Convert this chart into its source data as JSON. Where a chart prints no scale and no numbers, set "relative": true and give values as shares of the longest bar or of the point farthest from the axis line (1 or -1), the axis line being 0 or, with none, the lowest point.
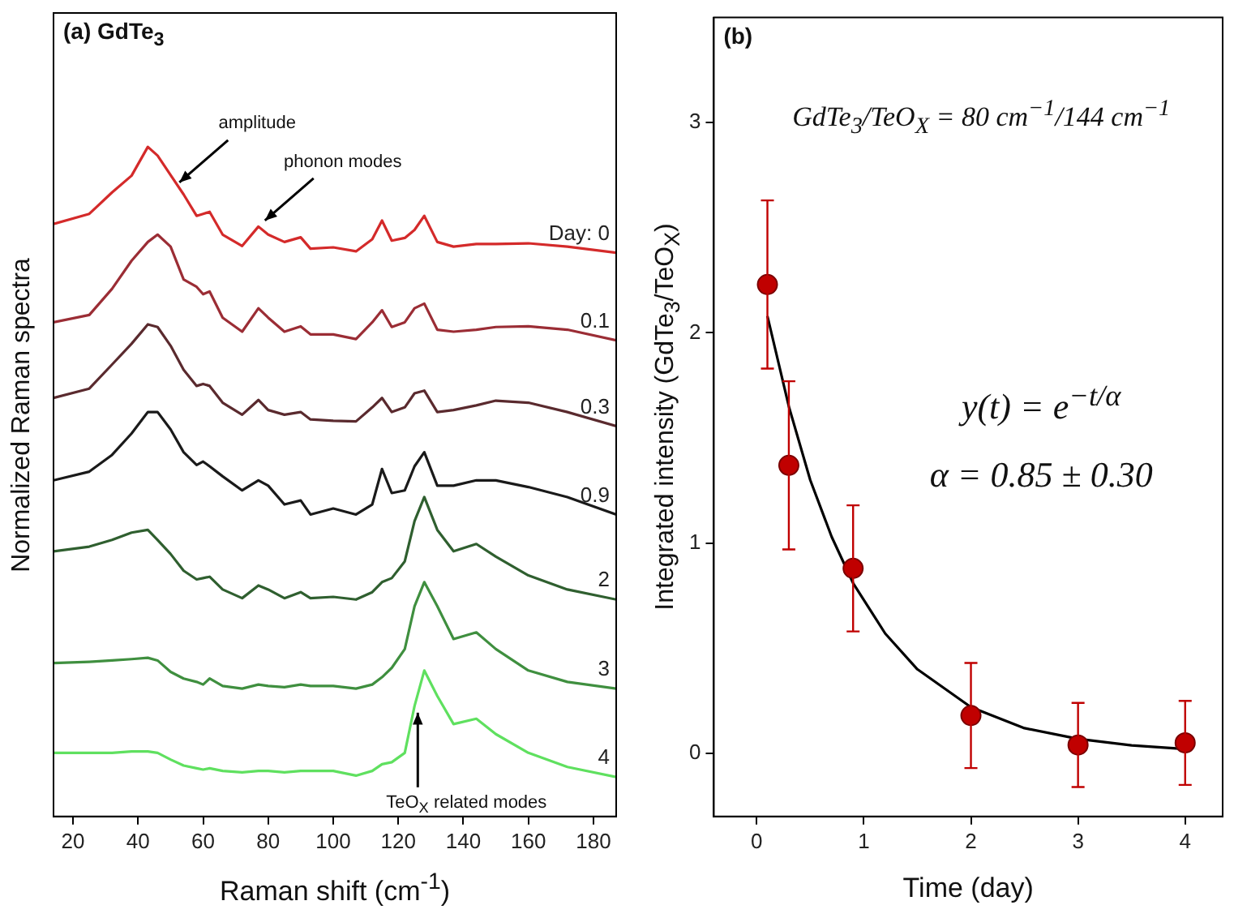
{
  "chart_data": [
    {
      "type": "line",
      "title": "(a) GdTe$_{3}$",
      "xlabel": "Raman shift (cm$^{-1}$)",
      "ylabel": "Normalized Raman spectra",
      "relative": true,
      "xlim": [
        14,
        187
      ],
      "xticks": [
        20,
        40,
        60,
        80,
        100,
        120,
        140,
        160,
        180
      ],
      "grid": false,
      "legend": false,
      "x": [
        14,
        25,
        32,
        38,
        43,
        46,
        50,
        54,
        58,
        60,
        62,
        66,
        72,
        77,
        80,
        85,
        90,
        93,
        100,
        107,
        112,
        115,
        118,
        122,
        125,
        128,
        132,
        137,
        144,
        150,
        160,
        172,
        187
      ],
      "series": [
        {
          "name": "Day: 0",
          "color": "#d42a2a",
          "values": [
            0.885,
            0.9,
            0.932,
            0.957,
            1,
            0.987,
            0.958,
            0.929,
            0.897,
            0.9,
            0.903,
            0.869,
            0.852,
            0.881,
            0.869,
            0.858,
            0.865,
            0.848,
            0.85,
            0.844,
            0.862,
            0.89,
            0.86,
            0.864,
            0.876,
            0.897,
            0.858,
            0.851,
            0.855,
            0.855,
            0.856,
            0.851,
            0.842
          ]
        },
        {
          "name": "0.1",
          "color": "#9b2d35",
          "values": [
            0.738,
            0.749,
            0.788,
            0.83,
            0.858,
            0.869,
            0.851,
            0.802,
            0.791,
            0.78,
            0.784,
            0.745,
            0.724,
            0.759,
            0.745,
            0.724,
            0.732,
            0.72,
            0.72,
            0.713,
            0.738,
            0.756,
            0.731,
            0.738,
            0.759,
            0.766,
            0.727,
            0.724,
            0.727,
            0.731,
            0.732,
            0.727,
            0.711
          ]
        },
        {
          "name": "0.3",
          "color": "#5a2a2e",
          "values": [
            0.625,
            0.639,
            0.675,
            0.706,
            0.735,
            0.731,
            0.703,
            0.667,
            0.643,
            0.646,
            0.643,
            0.618,
            0.6,
            0.622,
            0.607,
            0.6,
            0.604,
            0.593,
            0.591,
            0.59,
            0.611,
            0.625,
            0.604,
            0.611,
            0.632,
            0.636,
            0.604,
            0.607,
            0.614,
            0.621,
            0.618,
            0.604,
            0.583
          ]
        },
        {
          "name": "0.9",
          "color": "#1a1a1a",
          "values": [
            0.502,
            0.515,
            0.54,
            0.572,
            0.604,
            0.604,
            0.578,
            0.544,
            0.525,
            0.53,
            0.523,
            0.508,
            0.487,
            0.502,
            0.494,
            0.466,
            0.472,
            0.451,
            0.46,
            0.451,
            0.466,
            0.519,
            0.483,
            0.487,
            0.523,
            0.544,
            0.494,
            0.494,
            0.502,
            0.502,
            0.492,
            0.477,
            0.451
          ]
        },
        {
          "name": "2",
          "color": "#2f5f2f",
          "values": [
            0.396,
            0.403,
            0.413,
            0.424,
            0.428,
            0.413,
            0.392,
            0.367,
            0.354,
            0.356,
            0.358,
            0.339,
            0.326,
            0.345,
            0.339,
            0.326,
            0.335,
            0.326,
            0.328,
            0.324,
            0.335,
            0.35,
            0.356,
            0.381,
            0.441,
            0.477,
            0.428,
            0.396,
            0.407,
            0.388,
            0.36,
            0.339,
            0.324
          ]
        },
        {
          "name": "3",
          "color": "#3f8f3f",
          "values": [
            0.229,
            0.231,
            0.233,
            0.235,
            0.237,
            0.233,
            0.216,
            0.206,
            0.201,
            0.197,
            0.206,
            0.195,
            0.191,
            0.197,
            0.195,
            0.193,
            0.197,
            0.195,
            0.195,
            0.191,
            0.197,
            0.208,
            0.222,
            0.25,
            0.314,
            0.35,
            0.314,
            0.265,
            0.275,
            0.25,
            0.218,
            0.201,
            0.191
          ]
        },
        {
          "name": "4",
          "color": "#5fe05f",
          "values": [
            0.095,
            0.095,
            0.095,
            0.097,
            0.097,
            0.095,
            0.085,
            0.076,
            0.072,
            0.07,
            0.072,
            0.068,
            0.066,
            0.068,
            0.068,
            0.066,
            0.068,
            0.068,
            0.068,
            0.061,
            0.068,
            0.078,
            0.081,
            0.095,
            0.165,
            0.218,
            0.18,
            0.138,
            0.146,
            0.123,
            0.095,
            0.074,
            0.059
          ]
        }
      ],
      "annotations": [
        {
          "text": "amplitude",
          "x": 52.7,
          "y": 0.947
        },
        {
          "text": "phonon modes",
          "x": 79,
          "y": 0.89
        },
        {
          "text": "TeO$_{X}$ related modes",
          "x": 126,
          "y": 0.155
        }
      ]
    },
    {
      "type": "scatter",
      "title": "(b)",
      "xlabel": "Time (day)",
      "ylabel": "Integrated intensity (GdTe$_{3}$/TeO$_{X}$)",
      "xlim": [
        -0.4,
        4.35
      ],
      "ylim": [
        -0.3,
        3.5
      ],
      "xticks": [
        0,
        1,
        2,
        3,
        4
      ],
      "yticks": [
        0,
        1,
        2,
        3
      ],
      "grid": false,
      "legend": false,
      "marker": "circle",
      "series": [
        {
          "color": "#c00000",
          "x": [
            0.1,
            0.3,
            0.9,
            2,
            3,
            4
          ],
          "values": [
            2.23,
            1.37,
            0.88,
            0.18,
            0.04,
            0.05
          ],
          "errors": [
            0.4,
            0.4,
            0.3,
            0.25,
            0.2,
            0.2
          ]
        },
        {
          "type": "line",
          "marker": "none",
          "color": "#000000",
          "x": [
            0.1,
            0.3,
            0.5,
            0.7,
            0.9,
            1.2,
            1.5,
            2,
            2.5,
            3,
            3.5,
            4
          ],
          "values": [
            2.08,
            1.65,
            1.3,
            1.03,
            0.81,
            0.57,
            0.4,
            0.22,
            0.12,
            0.069,
            0.038,
            0.021
          ]
        }
      ],
      "annotations": [
        "GdTe$_{3}$/TeO$_{X}$ = 80 cm$^{−1}$/144 cm$^{−1}$",
        "y(t) = e$^{−t/α}$",
        "α = 0.85 ± 0.30"
      ]
    }
  ]
}
